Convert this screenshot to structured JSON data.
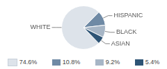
{
  "chart_data": {
    "type": "pie",
    "categories": [
      "WHITE",
      "HISPANIC",
      "BLACK",
      "ASIAN"
    ],
    "values": [
      74.6,
      10.8,
      9.2,
      5.4
    ],
    "value_labels": [
      "74.6%",
      "10.8%",
      "9.2%",
      "5.4%"
    ],
    "colors": [
      "#dde3ea",
      "#6f8aa5",
      "#a7b6c6",
      "#2e5475"
    ],
    "legend": "bottom"
  }
}
